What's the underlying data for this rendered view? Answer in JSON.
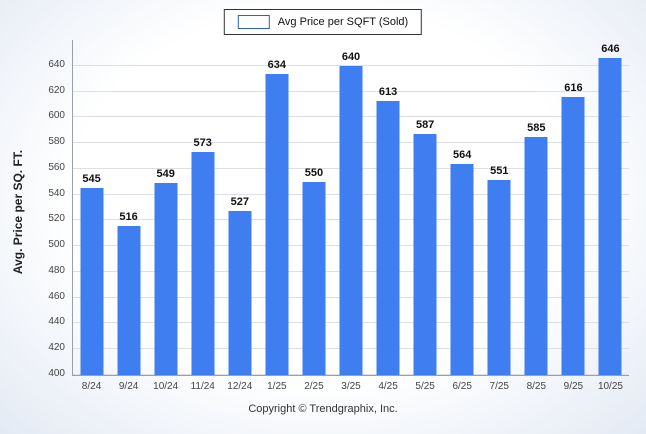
{
  "legend": {
    "label": "Avg Price per SQFT (Sold)"
  },
  "footer": {
    "text": "Copyright © Trendgraphix, Inc."
  },
  "colors": {
    "bar": "#3e7ef0",
    "bar_border": "#2c5fc4",
    "gridline": "#dcdfe3"
  },
  "chart_data": {
    "type": "bar",
    "title": "Avg Price per SQFT (Sold)",
    "categories": [
      "8/24",
      "9/24",
      "10/24",
      "11/24",
      "12/24",
      "1/25",
      "2/25",
      "3/25",
      "4/25",
      "5/25",
      "6/25",
      "7/25",
      "8/25",
      "9/25",
      "10/25"
    ],
    "values": [
      545,
      516,
      549,
      573,
      527,
      634,
      550,
      640,
      613,
      587,
      564,
      551,
      585,
      616,
      646
    ],
    "xlabel": "",
    "ylabel": "Avg. Price per SQ. FT.",
    "ylim": [
      400,
      660
    ],
    "yticks": [
      400,
      420,
      440,
      460,
      480,
      500,
      520,
      540,
      560,
      580,
      600,
      620,
      640
    ],
    "grid": true,
    "legend_position": "top",
    "data_labels": true
  }
}
